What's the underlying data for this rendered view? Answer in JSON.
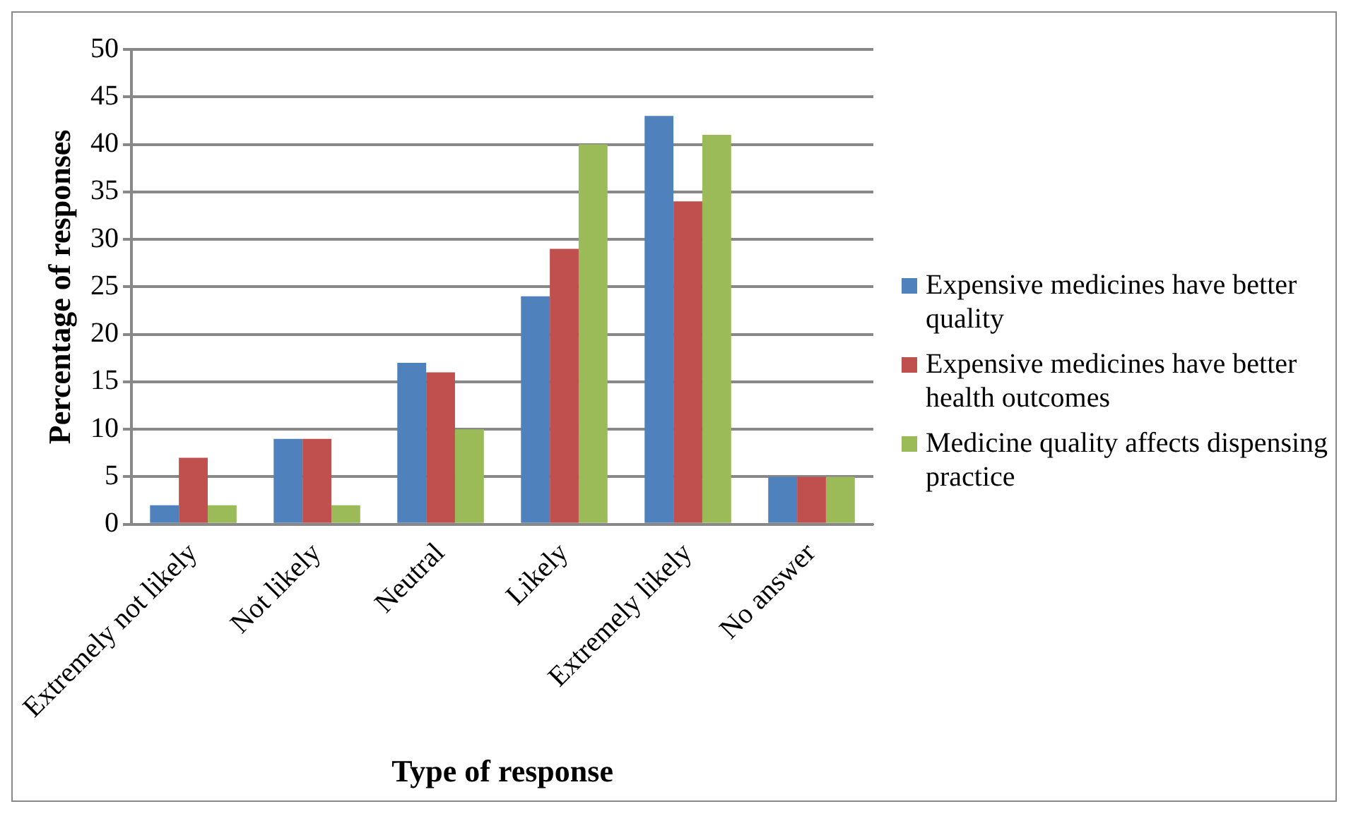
{
  "chart_data": {
    "type": "bar",
    "xlabel": "Type of response",
    "ylabel": "Percentage of responses",
    "categories": [
      "Extremely not likely",
      "Not likely",
      "Neutral",
      "Likely",
      "Extremely likely",
      "No answer"
    ],
    "series": [
      {
        "name": "Expensive medicines have better quality",
        "color": "#4f81bd",
        "values": [
          2,
          9,
          17,
          24,
          43,
          5
        ]
      },
      {
        "name": "Expensive medicines have better health outcomes",
        "color": "#c0504d",
        "values": [
          7,
          9,
          16,
          29,
          34,
          5
        ]
      },
      {
        "name": "Medicine quality affects dispensing practice",
        "color": "#9bbb59",
        "values": [
          2,
          2,
          10,
          40,
          41,
          5
        ]
      }
    ],
    "ylim": [
      0,
      50
    ],
    "yticks": [
      0,
      5,
      10,
      15,
      20,
      25,
      30,
      35,
      40,
      45,
      50
    ],
    "grid": "y",
    "legend": "right"
  }
}
